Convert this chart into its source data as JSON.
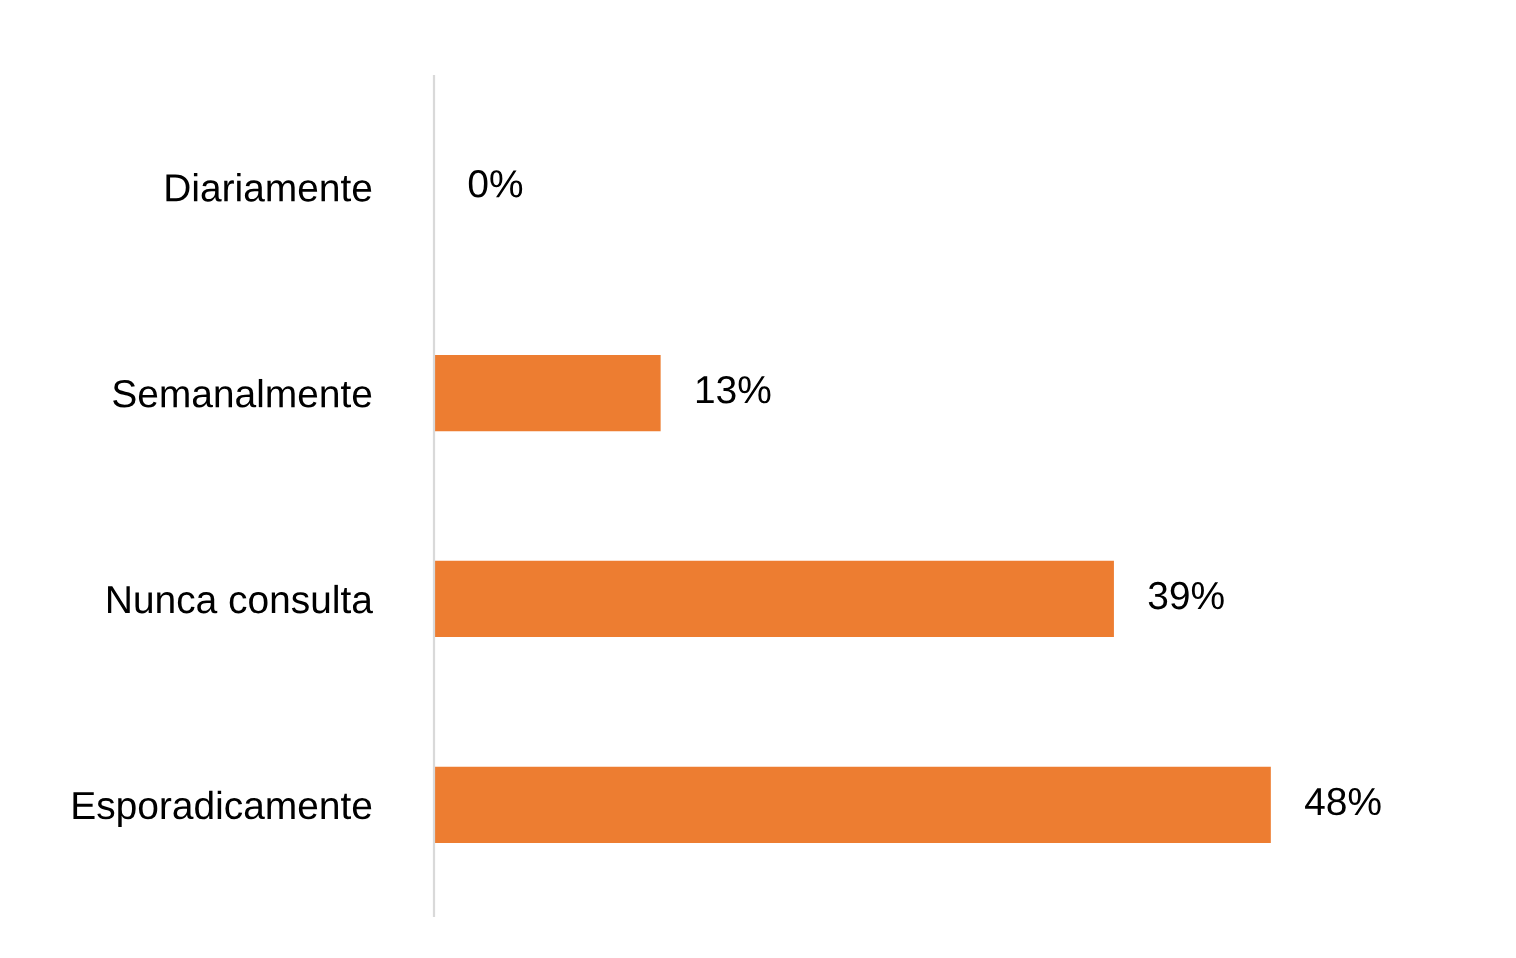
{
  "chart_data": {
    "type": "bar",
    "orientation": "horizontal",
    "categories": [
      "Diariamente",
      "Semanalmente",
      "Nunca consulta",
      "Esporadicamente"
    ],
    "values": [
      0,
      13,
      39,
      48
    ],
    "value_labels": [
      "0%",
      "13%",
      "39%",
      "48%"
    ],
    "color": "#ed7d31",
    "grid": false,
    "legend": false
  }
}
